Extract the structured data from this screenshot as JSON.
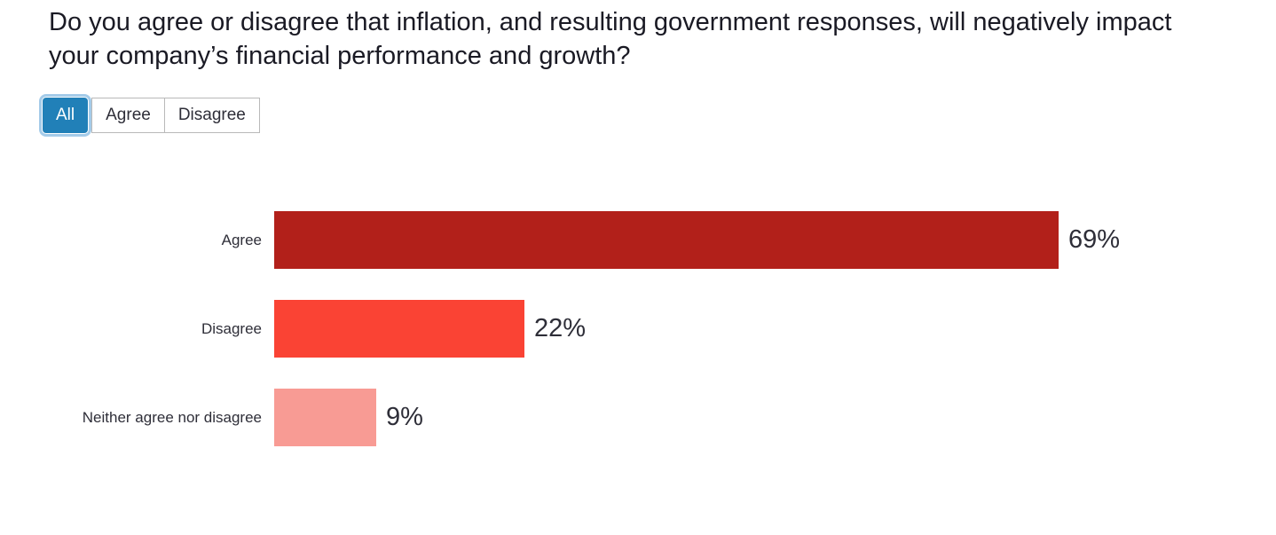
{
  "title": "Do you agree or disagree that inflation, and resulting government responses, will negatively impact your company’s financial performance and growth?",
  "filters": {
    "items": [
      {
        "label": "All",
        "selected": true
      },
      {
        "label": "Agree",
        "selected": false
      },
      {
        "label": "Disagree",
        "selected": false
      }
    ]
  },
  "colors": {
    "filter_selected_bg": "#2180b8",
    "filter_selected_ring": "#a4cbe9",
    "bar_agree": "#b2201a",
    "bar_disagree": "#fa4334",
    "bar_neither": "#f89b94"
  },
  "chart_data": {
    "type": "bar",
    "orientation": "horizontal",
    "title": "Do you agree or disagree that inflation, and resulting government responses, will negatively impact your company’s financial performance and growth?",
    "categories": [
      "Agree",
      "Disagree",
      "Neither agree nor disagree"
    ],
    "values": [
      69,
      22,
      9
    ],
    "value_labels": [
      "69%",
      "22%",
      "9%"
    ],
    "colors": [
      "#b2201a",
      "#fa4334",
      "#f89b94"
    ],
    "xlabel": "",
    "ylabel": "",
    "xlim": [
      0,
      100
    ],
    "grid": false,
    "legend": false
  }
}
